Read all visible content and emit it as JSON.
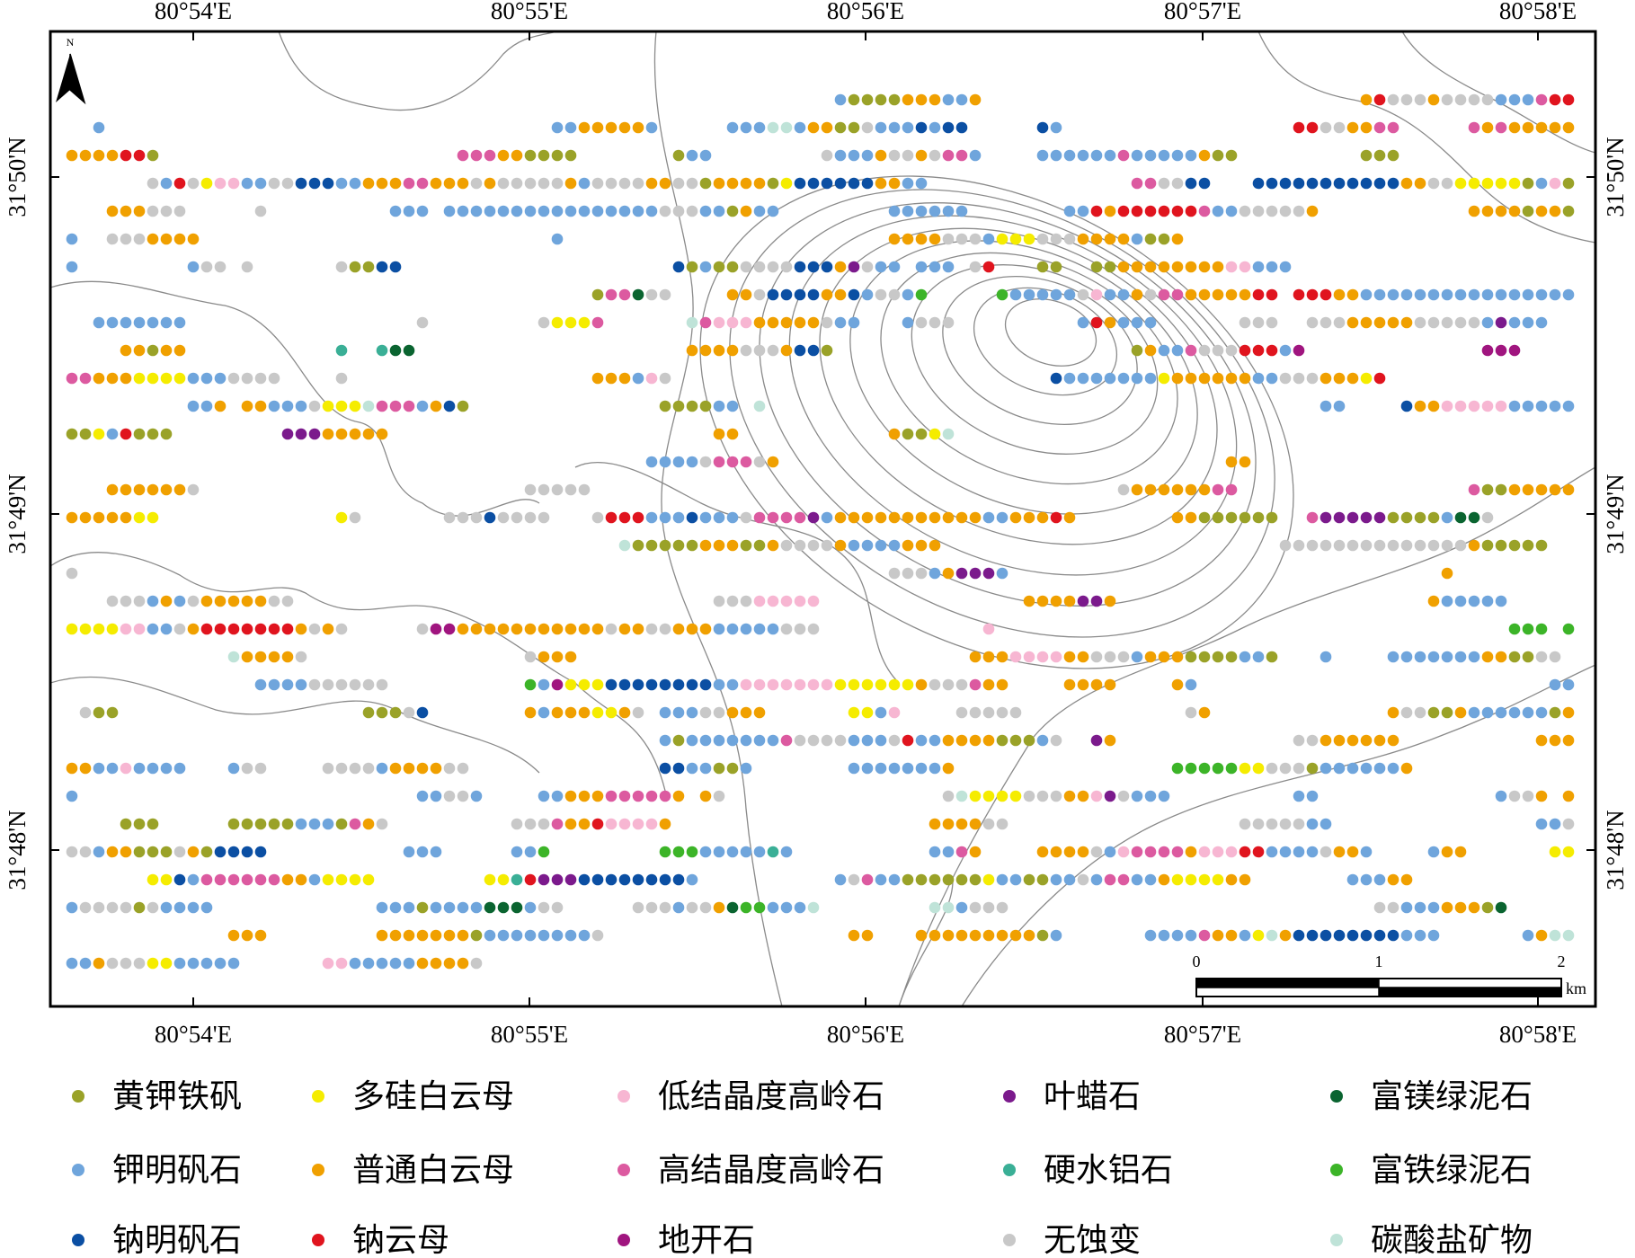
{
  "map": {
    "north": "N",
    "longitude_labels": [
      "80°54'E",
      "80°55'E",
      "80°56'E",
      "80°57'E",
      "80°58'E"
    ],
    "latitude_labels": [
      "31°50'N",
      "31°49'N",
      "31°48'N"
    ],
    "scale_bar": {
      "labels": [
        "0",
        "1",
        "2"
      ],
      "unit": "km"
    },
    "legend": [
      {
        "label": "黄钾铁矾",
        "color": "#9aa228"
      },
      {
        "label": "多硅白云母",
        "color": "#f5ec00"
      },
      {
        "label": "低结晶度高岭石",
        "color": "#f7b6d2"
      },
      {
        "label": "叶蜡石",
        "color": "#7b1a8c"
      },
      {
        "label": "富镁绿泥石",
        "color": "#0a6430"
      },
      {
        "label": "钾明矾石",
        "color": "#6fa5dc"
      },
      {
        "label": "普通白云母",
        "color": "#f0a000"
      },
      {
        "label": "高结晶度高岭石",
        "color": "#dc5aa0"
      },
      {
        "label": "硬水铝石",
        "color": "#3aaf96"
      },
      {
        "label": "富铁绿泥石",
        "color": "#3cb428"
      },
      {
        "label": "钠明矾石",
        "color": "#0b4fa3"
      },
      {
        "label": "钠云母",
        "color": "#e0141e"
      },
      {
        "label": "地开石",
        "color": "#a0157f"
      },
      {
        "label": "无蚀变",
        "color": "#c8c8c8"
      },
      {
        "label": "碳酸盐矿物",
        "color": "#bfe3d8"
      }
    ]
  }
}
